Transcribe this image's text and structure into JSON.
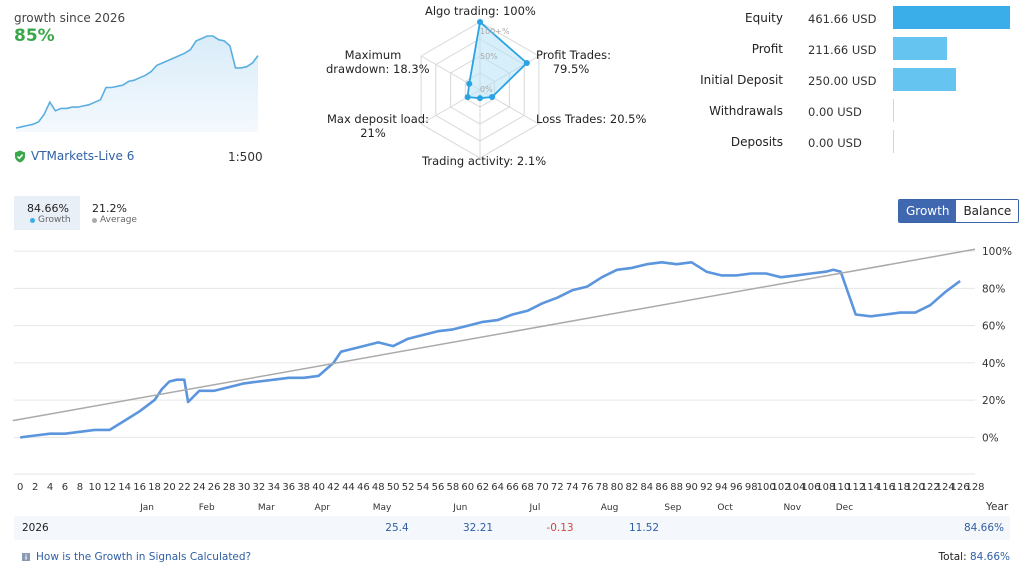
{
  "summary": {
    "growth_label": "growth since 2026",
    "growth_value": "85%",
    "sparkline": [
      3,
      4,
      5,
      6,
      8,
      14,
      24,
      17,
      19,
      19,
      20,
      20,
      21,
      22,
      24,
      26,
      36,
      36,
      37,
      38,
      41,
      42,
      44,
      46,
      49,
      54,
      56,
      58,
      60,
      62,
      64,
      67,
      74,
      76,
      78,
      78,
      75,
      74,
      70,
      52,
      52,
      53,
      56,
      62
    ],
    "account_name": "VTMarkets-Live 6",
    "leverage": "1:500"
  },
  "radar": {
    "axes": [
      {
        "label": "Algo trading: 100%",
        "value": 100
      },
      {
        "label": "Profit Trades: 79.5%",
        "value": 79.5
      },
      {
        "label": "Loss Trades: 20.5%",
        "value": 20.5
      },
      {
        "label": "Trading activity: 2.1%",
        "value": 2.1
      },
      {
        "label": "Max deposit load: 21%",
        "value": 21
      },
      {
        "label": "Maximum drawdown: 18.3%",
        "value": 18.3
      }
    ],
    "ticks": [
      "100+%",
      "50%",
      "0%"
    ],
    "labels": {
      "algo": "Algo trading: 100%",
      "profit_l1": "Profit Trades:",
      "profit_l2": "79.5%",
      "loss": "Loss Trades: 20.5%",
      "activity": "Trading activity: 2.1%",
      "load_l1": "Max deposit load:",
      "load_l2": "21%",
      "drawdown_l1": "Maximum",
      "drawdown_l2": "drawdown: 18.3%"
    }
  },
  "stats": [
    {
      "label": "Equity",
      "value": "461.66 USD",
      "amount": 461.66,
      "color": "#3aaee8"
    },
    {
      "label": "Profit",
      "value": "211.66 USD",
      "amount": 211.66,
      "color": "#66c4f0"
    },
    {
      "label": "Initial Deposit",
      "value": "250.00 USD",
      "amount": 250.0,
      "color": "#66c4f0"
    },
    {
      "label": "Withdrawals",
      "value": "0.00 USD",
      "amount": 0,
      "color": "#66c4f0"
    },
    {
      "label": "Deposits",
      "value": "0.00 USD",
      "amount": 0,
      "color": "#66c4f0"
    }
  ],
  "tabs": {
    "growth_value": "84.66%",
    "growth_label": "Growth",
    "average_value": "21.2%",
    "average_label": "Average"
  },
  "toggle": {
    "growth": "Growth",
    "balance": "Balance"
  },
  "chart_data": {
    "type": "line",
    "x": [
      0,
      2,
      4,
      6,
      8,
      10,
      12,
      14,
      16,
      18,
      19,
      20,
      21,
      22,
      22.5,
      24,
      26,
      28,
      30,
      32,
      34,
      36,
      38,
      40,
      42,
      43,
      44,
      46,
      48,
      50,
      52,
      54,
      56,
      58,
      60,
      62,
      64,
      66,
      68,
      70,
      72,
      74,
      76,
      78,
      80,
      82,
      84,
      86,
      88,
      90,
      92,
      94,
      96,
      98,
      100,
      102,
      104,
      106,
      108,
      109,
      110,
      112,
      114,
      116,
      118,
      120,
      122,
      124,
      126
    ],
    "series": [
      {
        "name": "Growth",
        "color": "#5b95dd",
        "values": [
          0,
          1,
          2,
          2,
          3,
          4,
          4,
          9,
          14,
          20,
          26,
          30,
          31,
          31,
          19,
          25,
          25,
          27,
          29,
          30,
          31,
          32,
          32,
          33,
          40,
          46,
          47,
          49,
          51,
          49,
          53,
          55,
          57,
          58,
          60,
          62,
          63,
          66,
          68,
          72,
          75,
          79,
          81,
          86,
          90,
          91,
          93,
          94,
          93,
          94,
          89,
          87,
          87,
          88,
          88,
          86,
          87,
          88,
          89,
          90,
          89,
          66,
          65,
          66,
          67,
          67,
          71,
          78,
          84
        ]
      },
      {
        "name": "Average",
        "color": "#aaaaaa",
        "values": [
          9,
          101
        ],
        "x": [
          -1,
          128
        ]
      }
    ],
    "x_ticks": [
      0,
      2,
      4,
      6,
      8,
      10,
      12,
      14,
      16,
      18,
      20,
      22,
      24,
      26,
      28,
      30,
      32,
      34,
      36,
      38,
      40,
      42,
      44,
      46,
      48,
      50,
      52,
      54,
      56,
      58,
      60,
      62,
      64,
      66,
      68,
      70,
      72,
      74,
      76,
      78,
      80,
      82,
      84,
      86,
      88,
      90,
      92,
      94,
      96,
      98,
      100,
      102,
      104,
      106,
      108,
      110,
      112,
      114,
      116,
      118,
      120,
      122,
      124,
      126,
      128
    ],
    "months": [
      {
        "label": "Jan",
        "x": 17
      },
      {
        "label": "Feb",
        "x": 25
      },
      {
        "label": "Mar",
        "x": 33
      },
      {
        "label": "Apr",
        "x": 40.5
      },
      {
        "label": "May",
        "x": 48.5
      },
      {
        "label": "Jun",
        "x": 59
      },
      {
        "label": "Jul",
        "x": 69
      },
      {
        "label": "Aug",
        "x": 79
      },
      {
        "label": "Sep",
        "x": 87.5
      },
      {
        "label": "Oct",
        "x": 94.5
      },
      {
        "label": "Nov",
        "x": 103.5
      },
      {
        "label": "Dec",
        "x": 110.5
      }
    ],
    "y_ticks": [
      "100%",
      "80%",
      "60%",
      "40%",
      "20%",
      "0%"
    ],
    "y_tick_values": [
      100,
      80,
      60,
      40,
      20,
      0
    ],
    "ylim": [
      -10,
      106
    ],
    "xlim": [
      -0.3,
      128
    ],
    "year_label": "Year",
    "grid": true
  },
  "year_row": {
    "year": "2026",
    "months": [
      {
        "value": "25.4",
        "month": "May",
        "color": "#2f5fa5"
      },
      {
        "value": "32.21",
        "month": "Jun",
        "color": "#2f5fa5"
      },
      {
        "value": "-0.13",
        "month": "Jul",
        "color": "#d0473e"
      },
      {
        "value": "11.52",
        "month": "Aug",
        "color": "#2f5fa5"
      }
    ],
    "total": "84.66%"
  },
  "footer": {
    "link": "How is the Growth in Signals Calculated?",
    "total_label": "Total:",
    "total_value": "84.66%"
  },
  "icons": {
    "shield": "shield-check-icon",
    "info": "info-icon"
  }
}
